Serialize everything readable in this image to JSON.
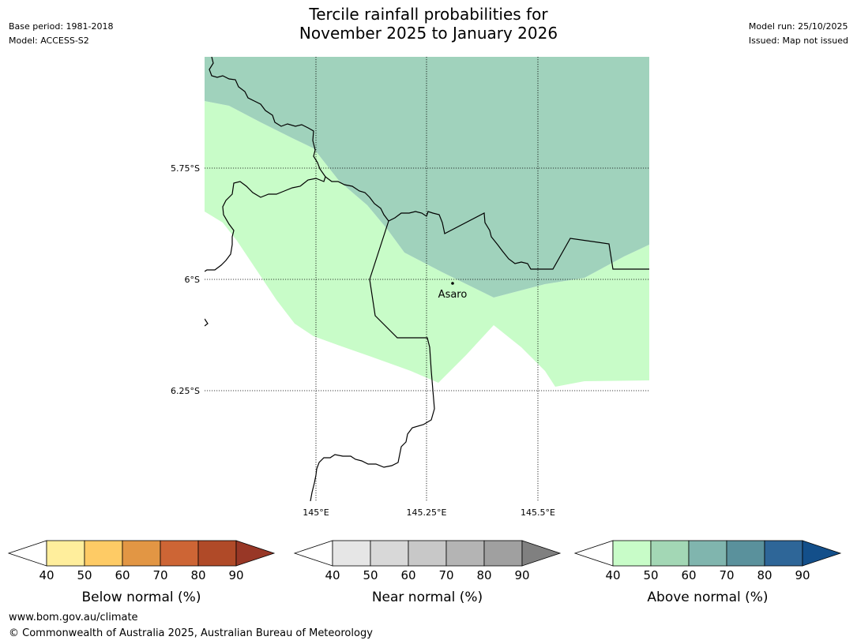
{
  "header": {
    "base_period": "Base period: 1981-2018",
    "model": "Model: ACCESS-S2",
    "title_line1": "Tercile rainfall probabilities for",
    "title_line2": "November 2025 to January 2026",
    "model_run": "Model run: 25/10/2025",
    "issued": "Issued: Map not issued"
  },
  "map": {
    "lat_labels": [
      "5.75°S",
      "6°S",
      "6.25°S"
    ],
    "lon_labels": [
      "145°E",
      "145.25°E",
      "145.5°E"
    ],
    "town": "Asaro",
    "colors": {
      "above_40_50": "#c8fcc8",
      "above_50_60": "#a0d2bc"
    }
  },
  "colorbars": [
    {
      "label": "Below normal (%)",
      "ticks": [
        "40",
        "50",
        "60",
        "70",
        "80",
        "90"
      ],
      "colors": [
        "#ffee9c",
        "#fecb65",
        "#e29644",
        "#cd6535",
        "#b04a28",
        "#983726"
      ]
    },
    {
      "label": "Near normal (%)",
      "ticks": [
        "40",
        "50",
        "60",
        "70",
        "80",
        "90"
      ],
      "colors": [
        "#e6e6e6",
        "#d8d8d8",
        "#c8c8c8",
        "#b4b4b4",
        "#a0a0a0",
        "#808080"
      ]
    },
    {
      "label": "Above normal (%)",
      "ticks": [
        "40",
        "50",
        "60",
        "70",
        "80",
        "90"
      ],
      "colors": [
        "#c8fcc8",
        "#a3d7b5",
        "#80b5ae",
        "#5a919c",
        "#2e6698",
        "#134f8a"
      ]
    }
  ],
  "footer": {
    "url": "www.bom.gov.au/climate",
    "copyright": "© Commonwealth of Australia 2025, Australian Bureau of Meteorology"
  }
}
